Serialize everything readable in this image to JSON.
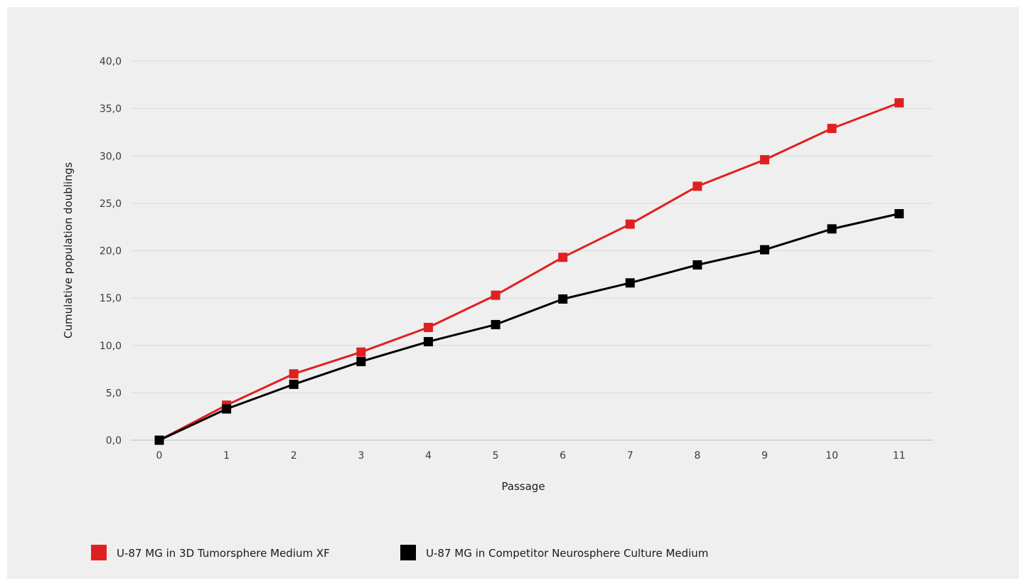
{
  "chart_data": {
    "type": "line",
    "title": "",
    "xlabel": "Passage",
    "ylabel": "Cumulative population doublings",
    "x": [
      0,
      1,
      2,
      3,
      4,
      5,
      6,
      7,
      8,
      9,
      10,
      11
    ],
    "x_tick_labels": [
      "0",
      "1",
      "2",
      "3",
      "4",
      "5",
      "6",
      "7",
      "8",
      "9",
      "10",
      "11"
    ],
    "y_tick_labels": [
      "0,0",
      "5,0",
      "10,0",
      "15,0",
      "20,0",
      "25,0",
      "30,0",
      "35,0",
      "40,0"
    ],
    "y_ticks": [
      0,
      5,
      10,
      15,
      20,
      25,
      30,
      35,
      40
    ],
    "ylim": [
      0,
      40
    ],
    "grid": "horizontal",
    "legend_position": "bottom-left",
    "series": [
      {
        "name": "U-87 MG in 3D Tumorsphere Medium XF",
        "color": "#e02020",
        "marker": "square",
        "values": [
          0,
          3.7,
          7.0,
          9.3,
          11.9,
          15.3,
          19.3,
          22.8,
          26.8,
          29.6,
          32.9,
          35.6
        ]
      },
      {
        "name": "U-87 MG in Competitor Neurosphere Culture Medium",
        "color": "#000000",
        "marker": "square",
        "values": [
          0,
          3.3,
          5.9,
          8.3,
          10.4,
          12.2,
          14.9,
          16.6,
          18.5,
          20.1,
          22.3,
          23.9
        ]
      }
    ]
  }
}
